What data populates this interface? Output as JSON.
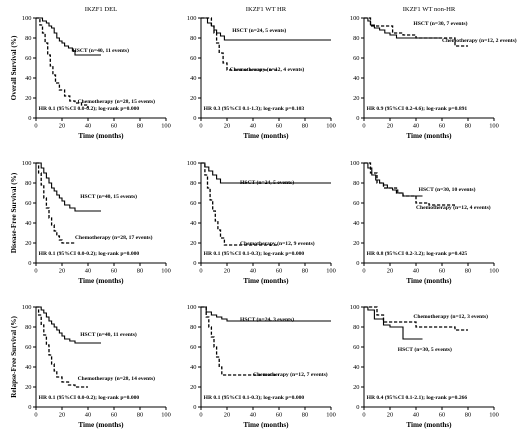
{
  "chart_data": [
    {
      "type": "line",
      "col_title": "IKZF1 DEL",
      "ylabel": "Overall Survival (%)",
      "xlabel": "Time (months)",
      "xlim": [
        0,
        100
      ],
      "ylim": [
        0,
        100
      ],
      "xticks": [
        0,
        20,
        40,
        60,
        80,
        100
      ],
      "yticks": [
        0,
        20,
        40,
        60,
        80,
        100
      ],
      "series": [
        {
          "name": "HSCT (n=40, 11 events)",
          "style": "solid",
          "x": [
            0,
            5,
            8,
            10,
            12,
            14,
            16,
            18,
            20,
            22,
            25,
            28,
            30,
            50
          ],
          "y": [
            100,
            97,
            95,
            92,
            90,
            85,
            80,
            77,
            75,
            72,
            70,
            67,
            63,
            63
          ]
        },
        {
          "name": "Chemotherapy (n=28, 15 events)",
          "style": "dashed",
          "x": [
            0,
            3,
            5,
            7,
            9,
            11,
            13,
            15,
            18,
            22,
            26,
            30,
            35,
            40
          ],
          "y": [
            100,
            93,
            85,
            75,
            63,
            52,
            43,
            35,
            28,
            22,
            17,
            15,
            13,
            10
          ]
        }
      ],
      "annotation": "HR 0.1 (95%CI 0.0-0.2); log-rank p=0.000"
    },
    {
      "type": "line",
      "col_title": "IKZF1 WT HR",
      "ylabel": "",
      "xlabel": "Time (months)",
      "xlim": [
        0,
        100
      ],
      "ylim": [
        0,
        100
      ],
      "xticks": [
        0,
        20,
        40,
        60,
        80,
        100
      ],
      "yticks": [
        0,
        20,
        40,
        60,
        80,
        100
      ],
      "series": [
        {
          "name": "HSCT (n=24, 5 events)",
          "style": "solid",
          "x": [
            0,
            5,
            8,
            10,
            12,
            15,
            18,
            100
          ],
          "y": [
            100,
            95,
            92,
            88,
            85,
            82,
            78,
            78
          ]
        },
        {
          "name": "Chemotherapy (n=12, 4 events)",
          "style": "dashed",
          "x": [
            0,
            8,
            10,
            12,
            14,
            17,
            20,
            60
          ],
          "y": [
            100,
            92,
            85,
            75,
            65,
            55,
            48,
            48
          ]
        }
      ],
      "annotation": "HR 0.3 (95%CI 0.1-1.3); log-rank p=0.103"
    },
    {
      "type": "line",
      "col_title": "IKZF1 WT non-HR",
      "ylabel": "",
      "xlabel": "Time (months)",
      "xlim": [
        0,
        100
      ],
      "ylim": [
        0,
        100
      ],
      "xticks": [
        0,
        20,
        40,
        60,
        80,
        100
      ],
      "yticks": [
        0,
        20,
        40,
        60,
        80,
        100
      ],
      "series": [
        {
          "name": "HSCT (n=30, 7 events)",
          "style": "solid",
          "x": [
            0,
            3,
            5,
            8,
            12,
            16,
            20,
            25,
            30,
            35,
            40,
            50,
            60
          ],
          "y": [
            100,
            97,
            93,
            90,
            88,
            85,
            83,
            80,
            80,
            80,
            80,
            80,
            80
          ]
        },
        {
          "name": "Chemotherapy (n=12, 2 events)",
          "style": "dashed",
          "x": [
            0,
            5,
            10,
            15,
            22,
            30,
            40,
            50,
            60,
            70,
            80
          ],
          "y": [
            100,
            92,
            92,
            92,
            85,
            83,
            80,
            80,
            80,
            72,
            72
          ]
        }
      ],
      "annotation": "HR 0.9 (95%CI 0.2-4.6); log-rank p=0.891"
    },
    {
      "type": "line",
      "col_title": "",
      "ylabel": "Disease-Free Survival (%)",
      "xlabel": "Time (months)",
      "xlim": [
        0,
        100
      ],
      "ylim": [
        0,
        100
      ],
      "xticks": [
        0,
        20,
        40,
        60,
        80,
        100
      ],
      "yticks": [
        0,
        20,
        40,
        60,
        80,
        100
      ],
      "series": [
        {
          "name": "HSCT (n=40, 15 events)",
          "style": "solid",
          "x": [
            0,
            4,
            6,
            8,
            10,
            12,
            14,
            16,
            18,
            20,
            22,
            26,
            30,
            40,
            50
          ],
          "y": [
            100,
            95,
            90,
            85,
            80,
            75,
            72,
            68,
            65,
            62,
            58,
            55,
            52,
            52,
            52
          ]
        },
        {
          "name": "Chemotherapy (n=28, 17 events)",
          "style": "dashed",
          "x": [
            0,
            2,
            4,
            6,
            8,
            10,
            12,
            14,
            16,
            18,
            20,
            25,
            30
          ],
          "y": [
            100,
            90,
            78,
            65,
            55,
            45,
            38,
            32,
            27,
            23,
            20,
            20,
            20
          ]
        }
      ],
      "annotation": "HR 0.1 (95%CI 0.0-0.2); log-rank p=0.000"
    },
    {
      "type": "line",
      "col_title": "",
      "ylabel": "",
      "xlabel": "Time (months)",
      "xlim": [
        0,
        100
      ],
      "ylim": [
        0,
        100
      ],
      "xticks": [
        0,
        20,
        40,
        60,
        80,
        100
      ],
      "yticks": [
        0,
        20,
        40,
        60,
        80,
        100
      ],
      "series": [
        {
          "name": "HSCT (n=24, 5 events)",
          "style": "solid",
          "x": [
            0,
            3,
            6,
            9,
            12,
            15,
            20,
            30,
            100
          ],
          "y": [
            100,
            96,
            92,
            88,
            84,
            80,
            80,
            80,
            80
          ]
        },
        {
          "name": "Chemotherapy (n=12, 9 events)",
          "style": "dashed",
          "x": [
            0,
            3,
            5,
            7,
            9,
            11,
            13,
            15,
            18,
            25,
            40,
            50,
            60
          ],
          "y": [
            100,
            88,
            75,
            63,
            52,
            42,
            33,
            25,
            18,
            18,
            18,
            18,
            18
          ]
        }
      ],
      "annotation": "HR 0.1 (95%CI 0.1-0.3); log-rank p=0.000"
    },
    {
      "type": "line",
      "col_title": "",
      "ylabel": "",
      "xlabel": "Time (months)",
      "xlim": [
        0,
        100
      ],
      "ylim": [
        0,
        100
      ],
      "xticks": [
        0,
        20,
        40,
        60,
        80,
        100
      ],
      "yticks": [
        0,
        20,
        40,
        60,
        80,
        100
      ],
      "series": [
        {
          "name": "HSCT (n=30, 10 events)",
          "style": "solid",
          "x": [
            0,
            3,
            6,
            9,
            12,
            15,
            18,
            22,
            26,
            30,
            40,
            45
          ],
          "y": [
            100,
            95,
            88,
            83,
            80,
            78,
            75,
            73,
            70,
            67,
            67,
            67
          ]
        },
        {
          "name": "Chemotherapy (n=12, 4 events)",
          "style": "dashed",
          "x": [
            0,
            5,
            10,
            15,
            20,
            25,
            30,
            40,
            50,
            60,
            70
          ],
          "y": [
            100,
            90,
            80,
            75,
            75,
            70,
            67,
            60,
            58,
            58,
            58
          ]
        }
      ],
      "annotation": "HR 0.8 (95%CI 0.2-3.2); log-rank p=0.425"
    },
    {
      "type": "line",
      "col_title": "",
      "ylabel": "Relapse-Free Survival (%)",
      "xlabel": "Time (months)",
      "xlim": [
        0,
        100
      ],
      "ylim": [
        0,
        100
      ],
      "xticks": [
        0,
        20,
        40,
        60,
        80,
        100
      ],
      "yticks": [
        0,
        20,
        40,
        60,
        80,
        100
      ],
      "series": [
        {
          "name": "HSCT (n=40, 11 events)",
          "style": "solid",
          "x": [
            0,
            4,
            6,
            8,
            10,
            12,
            14,
            16,
            18,
            20,
            22,
            26,
            30,
            50
          ],
          "y": [
            100,
            97,
            94,
            90,
            86,
            83,
            80,
            77,
            74,
            71,
            68,
            66,
            64,
            64
          ]
        },
        {
          "name": "Chemotherapy (n=28, 14 events)",
          "style": "dashed",
          "x": [
            0,
            2,
            4,
            6,
            8,
            10,
            12,
            14,
            16,
            20,
            25,
            30,
            40
          ],
          "y": [
            100,
            92,
            82,
            72,
            62,
            52,
            43,
            36,
            30,
            25,
            22,
            20,
            20
          ]
        }
      ],
      "annotation": "HR 0.1 (95%CI 0.0-0.2); log-rank p=0.000"
    },
    {
      "type": "line",
      "col_title": "",
      "ylabel": "",
      "xlabel": "Time (months)",
      "xlim": [
        0,
        100
      ],
      "ylim": [
        0,
        100
      ],
      "xticks": [
        0,
        20,
        40,
        60,
        80,
        100
      ],
      "yticks": [
        0,
        20,
        40,
        60,
        80,
        100
      ],
      "series": [
        {
          "name": "HSCT (n=24, 3 events)",
          "style": "solid",
          "x": [
            0,
            4,
            8,
            12,
            16,
            20,
            30,
            100
          ],
          "y": [
            100,
            95,
            92,
            90,
            88,
            86,
            86,
            86
          ]
        },
        {
          "name": "Chemotherapy (n=12, 7 events)",
          "style": "dashed",
          "x": [
            0,
            4,
            6,
            8,
            10,
            12,
            14,
            16,
            20,
            30,
            40,
            60
          ],
          "y": [
            100,
            90,
            80,
            70,
            60,
            50,
            40,
            32,
            32,
            32,
            32,
            32
          ]
        }
      ],
      "annotation": "HR 0.1 (95%CI 0.1-0.3); log-rank p=0.000"
    },
    {
      "type": "line",
      "col_title": "",
      "ylabel": "",
      "xlabel": "Time (months)",
      "xlim": [
        0,
        100
      ],
      "ylim": [
        0,
        100
      ],
      "xticks": [
        0,
        20,
        40,
        60,
        80,
        100
      ],
      "yticks": [
        0,
        20,
        40,
        60,
        80,
        100
      ],
      "series": [
        {
          "name": "Chemotherapy (n=12, 3 events)",
          "style": "dashed",
          "x": [
            0,
            10,
            15,
            20,
            30,
            40,
            50,
            60,
            70,
            80
          ],
          "y": [
            100,
            92,
            85,
            85,
            85,
            80,
            80,
            80,
            77,
            77
          ]
        },
        {
          "name": "HSCT (n=30, 5 events)",
          "style": "solid",
          "x": [
            0,
            3,
            8,
            15,
            20,
            30,
            40,
            45
          ],
          "y": [
            100,
            97,
            88,
            82,
            80,
            68,
            68,
            68
          ]
        }
      ],
      "annotation": "HR 0.4 (95%CI 0.1-2.1); log-rank p=0.266"
    }
  ]
}
